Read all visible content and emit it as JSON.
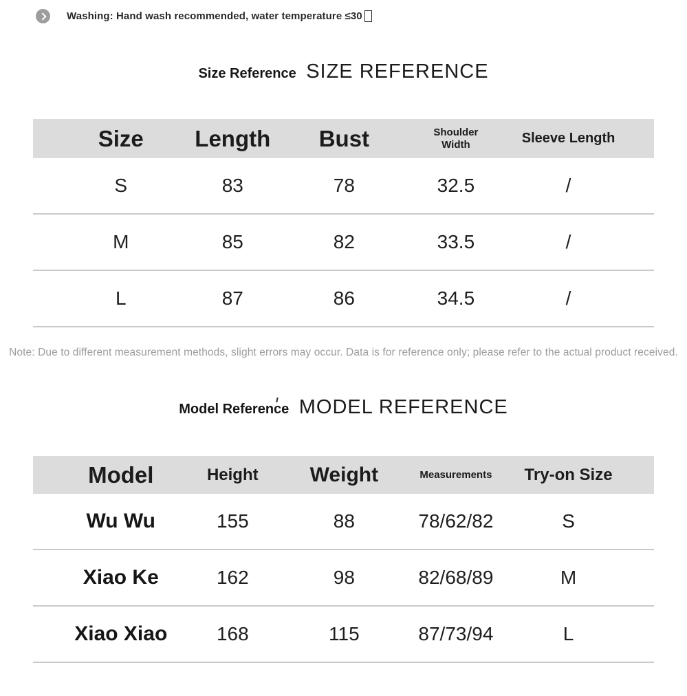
{
  "washing": {
    "icon": "chevron-right-circle-icon",
    "text": "Washing: Hand wash recommended, water temperature ≤30"
  },
  "size_section": {
    "title": "Size Reference",
    "title_caps": "SIZE REFERENCE",
    "table": {
      "headers": [
        "Size",
        "Length",
        "Bust",
        "Shoulder Width",
        "Sleeve Length"
      ],
      "rows": [
        [
          "S",
          "83",
          "78",
          "32.5",
          "/"
        ],
        [
          "M",
          "85",
          "82",
          "33.5",
          "/"
        ],
        [
          "L",
          "87",
          "86",
          "34.5",
          "/"
        ]
      ]
    },
    "note": "Note: Due to different measurement methods, slight errors may occur. Data is for reference only; please refer to the actual product received."
  },
  "model_section": {
    "title": "Model Reference",
    "title_caps": "MODEL REFERENCE",
    "table": {
      "headers": [
        "Model",
        "Height",
        "Weight",
        "Measurements",
        "Try-on Size"
      ],
      "rows": [
        [
          "Wu Wu",
          "155",
          "88",
          "78/62/82",
          "S"
        ],
        [
          "Xiao Ke",
          "162",
          "98",
          "82/68/89",
          "M"
        ],
        [
          "Xiao Xiao",
          "168",
          "115",
          "87/73/94",
          "L"
        ]
      ]
    }
  },
  "colors": {
    "header_bg": "#dcdcdc",
    "row_divider": "#c9c9c9",
    "note_text": "#9c9c9c",
    "icon_circle": "#9d9d9d",
    "text": "#1c1c1c"
  }
}
